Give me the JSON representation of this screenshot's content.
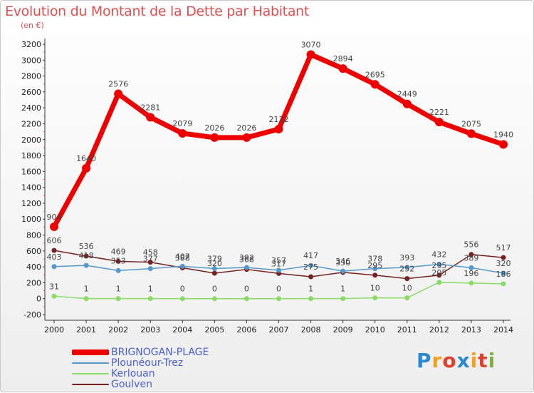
{
  "chart_data": {
    "type": "line",
    "title": "Evolution du Montant de la Dette par Habitant",
    "subtitle": "(en €)",
    "x": [
      "2000",
      "2001",
      "2002",
      "2003",
      "2004",
      "2005",
      "2006",
      "2007",
      "2008",
      "2009",
      "2010",
      "2011",
      "2012",
      "2013",
      "2014"
    ],
    "ylim": [
      -200,
      3200
    ],
    "yticks": [
      -200,
      0,
      200,
      400,
      600,
      800,
      1000,
      1200,
      1400,
      1600,
      1800,
      2000,
      2200,
      2400,
      2600,
      2800,
      3000,
      3200
    ],
    "grid": false,
    "legend_position": "bottom-left",
    "series": [
      {
        "name": "BRIGNOGAN-PLAGE",
        "color": "#ee0000",
        "values": [
          904,
          1640,
          2576,
          2281,
          2079,
          2026,
          2026,
          2132,
          3070,
          2894,
          2695,
          2449,
          2221,
          2075,
          1940
        ],
        "labels": [
          "904",
          "1640",
          "2576",
          "2281",
          "2079",
          "2026",
          "2026",
          "2132",
          "3070",
          "2894",
          "2695",
          "2449",
          "2221",
          "2075",
          "1940"
        ]
      },
      {
        "name": "Plounéour-Trez",
        "color": "#5599cc",
        "values": [
          403,
          418,
          353,
          377,
          407,
          379,
          392,
          357,
          417,
          346,
          378,
          393,
          432,
          389,
          320
        ],
        "labels": [
          "403",
          "418",
          "353",
          "377",
          "407",
          "379",
          "392",
          "357",
          "417",
          "346",
          "378",
          "393",
          "432",
          "389",
          "320"
        ]
      },
      {
        "name": "Kerlouan",
        "color": "#88dd66",
        "values": [
          31,
          1,
          1,
          1,
          0,
          0,
          0,
          0,
          1,
          1,
          10,
          10,
          205,
          196,
          186
        ],
        "labels": [
          "31",
          "1",
          "1",
          "1",
          "0",
          "0",
          "0",
          "0",
          "1",
          "1",
          "10",
          "10",
          "205",
          "196",
          "186"
        ]
      },
      {
        "name": "Goulven",
        "color": "#772222",
        "values": [
          606,
          536,
          469,
          458,
          388,
          320,
          368,
          317,
          275,
          330,
          295,
          252,
          295,
          556,
          517
        ],
        "labels": [
          "606",
          "536",
          "469",
          "458",
          "388",
          "320",
          "368",
          "317",
          "275",
          "330",
          "295",
          "252",
          "295",
          "556",
          "517"
        ]
      }
    ]
  },
  "brand": {
    "letters": [
      "P",
      "r",
      "o",
      "x",
      "i",
      "t",
      "i"
    ],
    "colors": [
      "#2a8ad0",
      "#f5a020",
      "#e04030",
      "#2a8ad0",
      "#f5a020",
      "#e04030",
      "#80b040"
    ]
  }
}
